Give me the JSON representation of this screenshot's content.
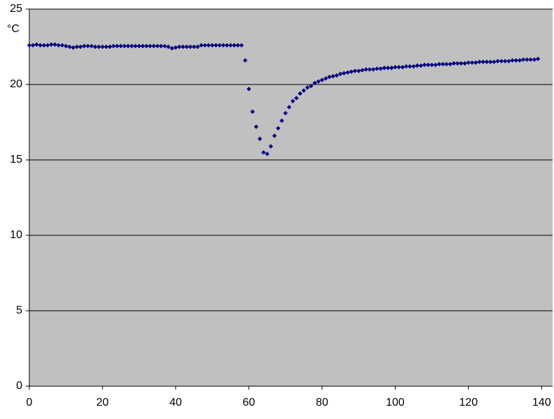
{
  "chart_data": {
    "type": "scatter",
    "y_label": "°C",
    "x": [
      0,
      1,
      2,
      3,
      4,
      5,
      6,
      7,
      8,
      9,
      10,
      11,
      12,
      13,
      14,
      15,
      16,
      17,
      18,
      19,
      20,
      21,
      22,
      23,
      24,
      25,
      26,
      27,
      28,
      29,
      30,
      31,
      32,
      33,
      34,
      35,
      36,
      37,
      38,
      39,
      40,
      41,
      42,
      43,
      44,
      45,
      46,
      47,
      48,
      49,
      50,
      51,
      52,
      53,
      54,
      55,
      56,
      57,
      58,
      59,
      60,
      61,
      62,
      63,
      64,
      65,
      66,
      67,
      68,
      69,
      70,
      71,
      72,
      73,
      74,
      75,
      76,
      77,
      78,
      79,
      80,
      81,
      82,
      83,
      84,
      85,
      86,
      87,
      88,
      89,
      90,
      91,
      92,
      93,
      94,
      95,
      96,
      97,
      98,
      99,
      100,
      101,
      102,
      103,
      104,
      105,
      106,
      107,
      108,
      109,
      110,
      111,
      112,
      113,
      114,
      115,
      116,
      117,
      118,
      119,
      120,
      121,
      122,
      123,
      124,
      125,
      126,
      127,
      128,
      129,
      130,
      131,
      132,
      133,
      134,
      135,
      136,
      137,
      138,
      139
    ],
    "series": [
      {
        "color": "#000080",
        "values": [
          22.6,
          22.6,
          22.65,
          22.6,
          22.6,
          22.6,
          22.65,
          22.65,
          22.6,
          22.6,
          22.55,
          22.5,
          22.45,
          22.5,
          22.5,
          22.55,
          22.55,
          22.55,
          22.5,
          22.5,
          22.5,
          22.5,
          22.5,
          22.55,
          22.55,
          22.55,
          22.55,
          22.55,
          22.55,
          22.55,
          22.55,
          22.55,
          22.55,
          22.55,
          22.55,
          22.55,
          22.55,
          22.55,
          22.5,
          22.4,
          22.45,
          22.5,
          22.5,
          22.5,
          22.5,
          22.5,
          22.5,
          22.6,
          22.6,
          22.6,
          22.6,
          22.6,
          22.6,
          22.6,
          22.6,
          22.6,
          22.6,
          22.6,
          22.6,
          21.6,
          19.7,
          18.2,
          17.2,
          16.4,
          15.5,
          15.4,
          15.9,
          16.6,
          17.1,
          17.6,
          18.1,
          18.5,
          18.9,
          19.1,
          19.4,
          19.6,
          19.8,
          19.9,
          20.1,
          20.2,
          20.3,
          20.4,
          20.5,
          20.55,
          20.6,
          20.7,
          20.75,
          20.8,
          20.85,
          20.9,
          20.9,
          20.95,
          21.0,
          21.0,
          21.0,
          21.05,
          21.05,
          21.1,
          21.1,
          21.1,
          21.15,
          21.15,
          21.15,
          21.2,
          21.2,
          21.2,
          21.25,
          21.25,
          21.3,
          21.3,
          21.3,
          21.3,
          21.35,
          21.35,
          21.35,
          21.35,
          21.4,
          21.4,
          21.4,
          21.4,
          21.45,
          21.45,
          21.45,
          21.5,
          21.5,
          21.5,
          21.5,
          21.5,
          21.55,
          21.55,
          21.55,
          21.55,
          21.6,
          21.6,
          21.6,
          21.65,
          21.65,
          21.65,
          21.65,
          21.7
        ]
      }
    ],
    "xlim": [
      0,
      143
    ],
    "ylim": [
      0,
      25
    ],
    "xticks": [
      0,
      20,
      40,
      60,
      80,
      100,
      120,
      140
    ],
    "yticks": [
      0,
      5,
      10,
      15,
      20,
      25
    ],
    "grid": true
  }
}
